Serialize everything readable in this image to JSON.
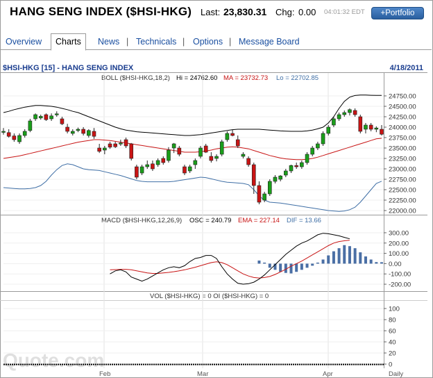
{
  "header": {
    "title": "HANG SENG INDEX ($HSI-HKG)",
    "last_label": "Last:",
    "last_value": "23,830.31",
    "chg_label": "Chg:",
    "chg_value": "0.00",
    "time": "04:01:32 EDT",
    "portfolio_button": "+Portfolio"
  },
  "tabs": [
    {
      "label": "Overview",
      "active": false
    },
    {
      "label": "Charts",
      "active": true
    },
    {
      "label": "News",
      "active": false
    },
    {
      "label": "Technicals",
      "active": false
    },
    {
      "label": "Options",
      "active": false
    },
    {
      "label": "Message Board",
      "active": false
    }
  ],
  "chart": {
    "symbol_title": "$HSI-HKG [15] - HANG SENG INDEX",
    "date": "4/18/2011",
    "boll_label": "BOLL ($HSI-HKG,18,2)",
    "boll_hi": "Hi = 24762.60",
    "boll_ma": "MA = 23732.73",
    "boll_lo": "Lo = 22702.85",
    "macd_label": "MACD ($HSI-HKG,12,26,9)",
    "macd_osc": "OSC = 240.79",
    "macd_ema": "EMA = 227.14",
    "macd_dif": "DIF = 13.66",
    "vol_label": "VOL ($HSI-HKG) = 0 OI ($HSI-HKG) = 0",
    "x_labels": [
      "Feb",
      "Mar",
      "Apr",
      "Daily"
    ],
    "watermark": "Quote.com",
    "colors": {
      "up": "#1a9e1a",
      "down": "#c81414",
      "ma": "#c81414",
      "upper": "#000000",
      "lower": "#3e6ea5",
      "macd_hist": "#4a6fa5",
      "macd_line": "#000000",
      "ema_line": "#c81414"
    }
  },
  "chart_data": [
    {
      "type": "candlestick",
      "title": "BOLL ($HSI-HKG,18,2)",
      "y_ticks": [
        24750,
        24500,
        24250,
        24000,
        23750,
        23500,
        23250,
        23000,
        22750,
        22500,
        22250,
        22000
      ],
      "ylim": [
        21950,
        25050
      ],
      "candles": [
        [
          23880,
          23980,
          23820,
          23900
        ],
        [
          23870,
          23950,
          23750,
          23780
        ],
        [
          23790,
          23850,
          23650,
          23700
        ],
        [
          23650,
          23850,
          23600,
          23800
        ],
        [
          23800,
          23950,
          23750,
          23900
        ],
        [
          23920,
          24200,
          23880,
          24150
        ],
        [
          24200,
          24330,
          24150,
          24300
        ],
        [
          24220,
          24300,
          24180,
          24260
        ],
        [
          24300,
          24330,
          24150,
          24180
        ],
        [
          24200,
          24330,
          24150,
          24270
        ],
        [
          24300,
          24380,
          24250,
          24320
        ],
        [
          24200,
          24250,
          24050,
          24080
        ],
        [
          24000,
          24080,
          23850,
          23900
        ],
        [
          23850,
          23950,
          23800,
          23900
        ],
        [
          23920,
          23990,
          23880,
          23950
        ],
        [
          23950,
          24000,
          23800,
          23850
        ],
        [
          23800,
          23950,
          23750,
          23920
        ],
        [
          23900,
          23980,
          23720,
          23780
        ],
        [
          23500,
          23600,
          23380,
          23420
        ],
        [
          23450,
          23550,
          23350,
          23500
        ],
        [
          23600,
          23650,
          23480,
          23520
        ],
        [
          23600,
          23650,
          23500,
          23530
        ],
        [
          23620,
          23700,
          23550,
          23620
        ],
        [
          23700,
          23750,
          23500,
          23550
        ],
        [
          23600,
          23620,
          23200,
          23250
        ],
        [
          23050,
          23100,
          22750,
          22800
        ],
        [
          22900,
          23100,
          22850,
          23050
        ],
        [
          23050,
          23200,
          23000,
          23100
        ],
        [
          23120,
          23200,
          22950,
          23000
        ],
        [
          23100,
          23250,
          23050,
          23200
        ],
        [
          23250,
          23300,
          23100,
          23150
        ],
        [
          23200,
          23520,
          23150,
          23450
        ],
        [
          23500,
          23620,
          23380,
          23600
        ],
        [
          23500,
          23550,
          23300,
          23350
        ],
        [
          23050,
          23100,
          22850,
          22900
        ],
        [
          22950,
          23100,
          22900,
          23050
        ],
        [
          23100,
          23250,
          23000,
          23200
        ],
        [
          23300,
          23550,
          23250,
          23500
        ],
        [
          23550,
          23600,
          23380,
          23400
        ],
        [
          23300,
          23400,
          23150,
          23200
        ],
        [
          23250,
          23350,
          23180,
          23300
        ],
        [
          23350,
          23700,
          23300,
          23650
        ],
        [
          23700,
          23900,
          23650,
          23850
        ],
        [
          23850,
          23950,
          23780,
          23800
        ],
        [
          23700,
          23800,
          23500,
          23550
        ],
        [
          23300,
          23400,
          23250,
          23350
        ],
        [
          23250,
          23300,
          23050,
          23100
        ],
        [
          23100,
          23150,
          22400,
          22600
        ],
        [
          22600,
          22700,
          22150,
          22200
        ],
        [
          22250,
          22450,
          22200,
          22400
        ],
        [
          22400,
          22750,
          22350,
          22700
        ],
        [
          22700,
          22850,
          22650,
          22800
        ],
        [
          22750,
          22850,
          22700,
          22830
        ],
        [
          22850,
          23000,
          22800,
          22950
        ],
        [
          22950,
          23100,
          22900,
          23080
        ],
        [
          23080,
          23150,
          23000,
          23050
        ],
        [
          23050,
          23200,
          23000,
          23150
        ],
        [
          23150,
          23400,
          23100,
          23350
        ],
        [
          23350,
          23550,
          23300,
          23500
        ],
        [
          23500,
          23650,
          23450,
          23600
        ],
        [
          23600,
          23900,
          23550,
          23850
        ],
        [
          23850,
          24050,
          23800,
          24000
        ],
        [
          24050,
          24250,
          24000,
          24200
        ],
        [
          24200,
          24350,
          24150,
          24300
        ],
        [
          24300,
          24400,
          24250,
          24350
        ],
        [
          24350,
          24450,
          24280,
          24420
        ],
        [
          24400,
          24450,
          24250,
          24300
        ],
        [
          24250,
          24300,
          23850,
          23900
        ],
        [
          23950,
          24100,
          23850,
          24050
        ],
        [
          24050,
          24100,
          23900,
          23950
        ],
        [
          23950,
          24020,
          23880,
          23980
        ],
        [
          23950,
          24050,
          23800,
          23830
        ]
      ],
      "upper": [
        24350,
        24380,
        24420,
        24450,
        24480,
        24500,
        24520,
        24520,
        24510,
        24500,
        24480,
        24450,
        24420,
        24380,
        24350,
        24300,
        24250,
        24200,
        24150,
        24100,
        24050,
        24000,
        23960,
        23930,
        23910,
        23890,
        23880,
        23870,
        23860,
        23850,
        23840,
        23830,
        23820,
        23810,
        23800,
        23800,
        23810,
        23820,
        23840,
        23860,
        23880,
        23900,
        23920,
        23940,
        23950,
        23950,
        23950,
        23950,
        23950,
        23940,
        23930,
        23920,
        23910,
        23905,
        23900,
        23900,
        23900,
        23910,
        23930,
        23960,
        24000,
        24100,
        24250,
        24450,
        24620,
        24720,
        24760,
        24770,
        24770,
        24765,
        24762,
        24762
      ],
      "middle": [
        23250,
        23270,
        23290,
        23310,
        23340,
        23370,
        23400,
        23430,
        23460,
        23490,
        23520,
        23550,
        23580,
        23610,
        23640,
        23660,
        23680,
        23700,
        23700,
        23690,
        23680,
        23660,
        23640,
        23620,
        23600,
        23580,
        23560,
        23540,
        23520,
        23500,
        23480,
        23460,
        23440,
        23420,
        23400,
        23400,
        23400,
        23410,
        23430,
        23450,
        23480,
        23500,
        23520,
        23530,
        23520,
        23500,
        23480,
        23440,
        23400,
        23360,
        23320,
        23290,
        23260,
        23240,
        23230,
        23220,
        23220,
        23230,
        23250,
        23280,
        23320,
        23360,
        23400,
        23440,
        23480,
        23520,
        23560,
        23600,
        23640,
        23680,
        23720,
        23733
      ],
      "lower": [
        22550,
        22540,
        22530,
        22520,
        22520,
        22530,
        22550,
        22600,
        22700,
        22850,
        22980,
        23080,
        23120,
        23100,
        23050,
        23000,
        22980,
        22970,
        22960,
        22930,
        22900,
        22870,
        22840,
        22800,
        22760,
        22720,
        22700,
        22690,
        22690,
        22690,
        22690,
        22690,
        22700,
        22720,
        22740,
        22760,
        22780,
        22800,
        22790,
        22760,
        22730,
        22700,
        22680,
        22670,
        22660,
        22650,
        22620,
        22500,
        22350,
        22250,
        22200,
        22190,
        22180,
        22160,
        22140,
        22120,
        22100,
        22080,
        22060,
        22040,
        22020,
        22000,
        21990,
        21980,
        21990,
        22020,
        22080,
        22200,
        22350,
        22500,
        22650,
        22703
      ]
    },
    {
      "type": "line",
      "title": "MACD ($HSI-HKG,12,26,9)",
      "y_ticks": [
        300,
        200,
        100,
        0,
        -100,
        -200
      ],
      "ylim": [
        -220,
        320
      ],
      "macd_start_index": 20,
      "macd": [
        -100,
        -70,
        -60,
        -80,
        -130,
        -150,
        -170,
        -150,
        -120,
        -90,
        -60,
        -40,
        -30,
        -40,
        -20,
        20,
        50,
        60,
        80,
        80,
        50,
        -30,
        -100,
        -150,
        -190,
        -200,
        -195,
        -180,
        -150,
        -110,
        -60,
        -10,
        40,
        90,
        130,
        170,
        200,
        220,
        250,
        280,
        295,
        290,
        280,
        270,
        255,
        241
      ],
      "ema": [
        -60,
        -58,
        -55,
        -55,
        -60,
        -70,
        -80,
        -90,
        -95,
        -95,
        -90,
        -85,
        -78,
        -70,
        -60,
        -48,
        -35,
        -20,
        -5,
        10,
        18,
        10,
        -10,
        -40,
        -70,
        -100,
        -120,
        -135,
        -140,
        -135,
        -125,
        -105,
        -80,
        -55,
        -25,
        0,
        25,
        55,
        85,
        115,
        145,
        175,
        200,
        215,
        222,
        227
      ],
      "hist_start_index": 48,
      "hist": [
        30,
        10,
        -40,
        -60,
        -80,
        -90,
        -95,
        -80,
        -60,
        -40,
        -20,
        10,
        40,
        80,
        120,
        150,
        180,
        170,
        150,
        110,
        70,
        40,
        15,
        14
      ]
    },
    {
      "type": "bar",
      "title": "VOL ($HSI-HKG) = 0 OI ($HSI-HKG) = 0",
      "y_ticks": [
        100,
        80,
        60,
        40,
        20,
        0
      ],
      "ylim": [
        0,
        105
      ],
      "values": []
    }
  ]
}
